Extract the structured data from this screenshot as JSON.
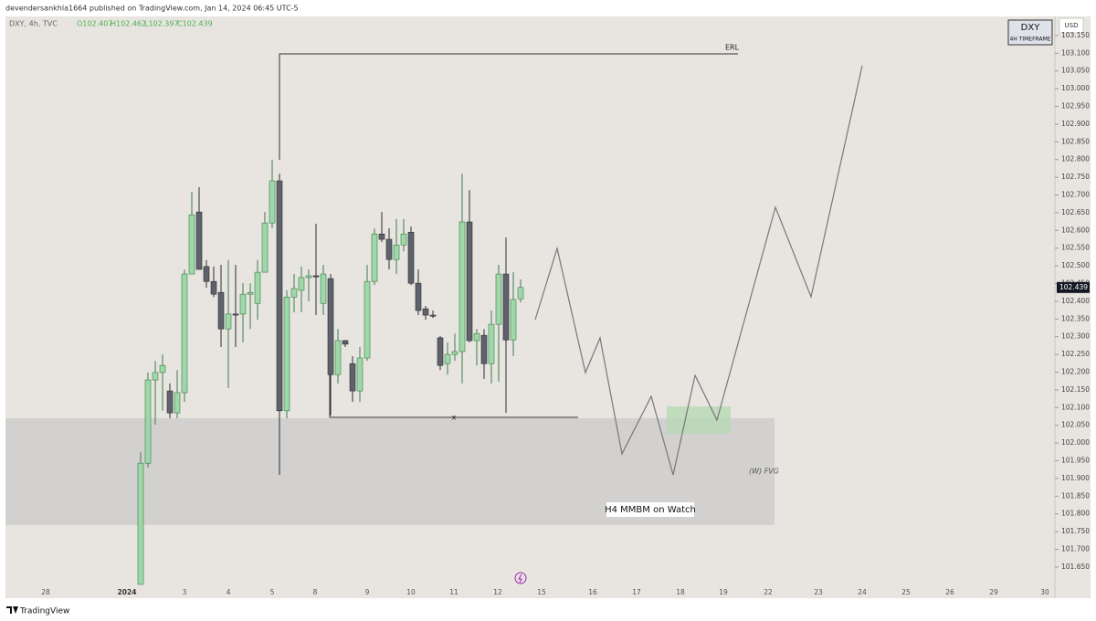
{
  "header": {
    "publisher": "devendersankhla1664 published on TradingView.com, Jan 14, 2024 06:45 UTC-5",
    "footer": "TradingView"
  },
  "chart_data": {
    "type": "candlestick",
    "legend": {
      "symbol": "DXY, 4h, TVC",
      "open": "O102.407",
      "high": "H102.462",
      "low": "L102.397",
      "close": "C102.439"
    },
    "badge": {
      "title": "DXY",
      "subtitle": "4H TIMEFRAME"
    },
    "currency": "USD",
    "up_color": "#9fd8a8",
    "down_color": "#5f626b",
    "open": [
      101.601,
      101.943,
      102.178,
      102.199,
      102.147,
      102.085,
      102.142,
      102.477,
      102.652,
      102.498,
      102.456,
      102.425,
      102.322,
      102.364,
      102.364,
      102.42,
      102.394,
      102.482,
      102.621,
      102.74,
      102.091,
      102.412,
      102.431,
      102.467,
      102.472,
      102.394,
      102.464,
      102.193,
      102.289,
      102.224,
      102.147,
      102.24,
      102.456,
      102.59,
      102.575,
      102.518,
      102.559,
      102.595,
      102.451,
      102.379,
      102.361,
      102.297,
      102.224,
      102.25,
      102.258,
      102.624,
      102.289,
      102.304,
      102.224,
      102.335,
      102.477,
      102.291,
      102.407
    ],
    "high": [
      101.974,
      102.199,
      102.232,
      102.25,
      102.168,
      102.206,
      102.49,
      102.709,
      102.722,
      102.516,
      102.498,
      102.503,
      102.516,
      102.503,
      102.451,
      102.451,
      102.516,
      102.652,
      102.799,
      102.76,
      102.431,
      102.477,
      102.498,
      102.49,
      102.619,
      102.503,
      102.477,
      102.322,
      102.291,
      102.245,
      102.271,
      102.503,
      102.606,
      102.652,
      102.606,
      102.632,
      102.632,
      102.611,
      102.49,
      102.387,
      102.374,
      102.302,
      102.284,
      102.309,
      102.76,
      102.714,
      102.322,
      102.322,
      102.374,
      102.503,
      102.58,
      102.482,
      102.462
    ],
    "low": [
      101.601,
      101.931,
      102.052,
      102.091,
      102.07,
      102.07,
      102.116,
      102.477,
      102.49,
      102.438,
      102.412,
      102.271,
      102.155,
      102.271,
      102.284,
      102.322,
      102.348,
      102.482,
      102.606,
      101.91,
      102.07,
      102.369,
      102.369,
      102.4,
      102.361,
      102.361,
      102.078,
      102.168,
      102.271,
      102.116,
      102.116,
      102.232,
      102.446,
      102.567,
      102.49,
      102.477,
      102.541,
      102.446,
      102.361,
      102.348,
      102.353,
      102.206,
      102.193,
      102.232,
      102.168,
      102.284,
      102.219,
      102.181,
      102.168,
      102.173,
      102.085,
      102.245,
      102.397
    ],
    "close": [
      101.943,
      102.178,
      102.199,
      102.219,
      102.085,
      102.142,
      102.477,
      102.644,
      102.49,
      102.456,
      102.42,
      102.322,
      102.364,
      102.361,
      102.42,
      102.425,
      102.482,
      102.621,
      102.74,
      102.091,
      102.412,
      102.436,
      102.467,
      102.472,
      102.469,
      102.477,
      102.193,
      102.289,
      102.279,
      102.147,
      102.24,
      102.456,
      102.59,
      102.575,
      102.518,
      102.559,
      102.59,
      102.451,
      102.374,
      102.361,
      102.358,
      102.219,
      102.25,
      102.258,
      102.624,
      102.289,
      102.309,
      102.224,
      102.335,
      102.477,
      102.291,
      102.405,
      102.439
    ],
    "last_price": {
      "value": 102.439,
      "label": "102.439"
    },
    "x_labels": [
      "28",
      "2024",
      "3",
      "4",
      "5",
      "8",
      "9",
      "10",
      "11",
      "12",
      "15",
      "16",
      "17",
      "18",
      "19",
      "22",
      "23",
      "24",
      "25",
      "26",
      "29",
      "30"
    ],
    "ylim": [
      101.575,
      103.204
    ],
    "yticks": [
      {
        "value": 103.15,
        "label": "103.150"
      },
      {
        "value": 103.1,
        "label": "103.100"
      },
      {
        "value": 103.05,
        "label": "103.050"
      },
      {
        "value": 103,
        "label": "103.000"
      },
      {
        "value": 102.95,
        "label": "102.950"
      },
      {
        "value": 102.9,
        "label": "102.900"
      },
      {
        "value": 102.85,
        "label": "102.850"
      },
      {
        "value": 102.8,
        "label": "102.800"
      },
      {
        "value": 102.75,
        "label": "102.750"
      },
      {
        "value": 102.7,
        "label": "102.700"
      },
      {
        "value": 102.65,
        "label": "102.650"
      },
      {
        "value": 102.6,
        "label": "102.600"
      },
      {
        "value": 102.55,
        "label": "102.550"
      },
      {
        "value": 102.5,
        "label": "102.500"
      },
      {
        "value": 102.45,
        "label": "102.450"
      },
      {
        "value": 102.4,
        "label": "102.400"
      },
      {
        "value": 102.35,
        "label": "102.350"
      },
      {
        "value": 102.3,
        "label": "102.300"
      },
      {
        "value": 102.25,
        "label": "102.250"
      },
      {
        "value": 102.2,
        "label": "102.200"
      },
      {
        "value": 102.15,
        "label": "102.150"
      },
      {
        "value": 102.1,
        "label": "102.100"
      },
      {
        "value": 102.05,
        "label": "102.050"
      },
      {
        "value": 102,
        "label": "102.000"
      },
      {
        "value": 101.95,
        "label": "101.950"
      },
      {
        "value": 101.9,
        "label": "101.900"
      },
      {
        "value": 101.85,
        "label": "101.850"
      },
      {
        "value": 101.8,
        "label": "101.800"
      },
      {
        "value": 101.75,
        "label": "101.750"
      },
      {
        "value": 101.7,
        "label": "101.700"
      },
      {
        "value": 101.65,
        "label": "101.650"
      }
    ],
    "annotations": {
      "erl": "ERL",
      "x_mark": "x",
      "fvg": "(W) FVG",
      "watch": "H4 MMBM on Watch"
    }
  }
}
